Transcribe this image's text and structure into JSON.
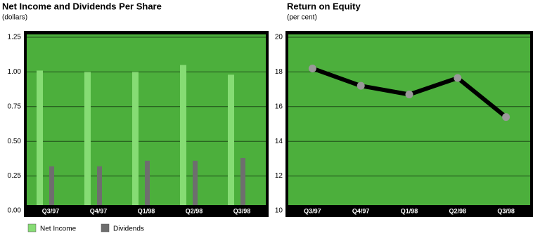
{
  "chart_data": [
    {
      "type": "bar",
      "title": "Net Income and Dividends Per Share",
      "subtitle": "(dollars)",
      "categories": [
        "Q3/97",
        "Q4/97",
        "Q1/98",
        "Q2/98",
        "Q3/98"
      ],
      "series": [
        {
          "name": "Net Income",
          "color": "#86dc74",
          "values": [
            1.01,
            1.0,
            1.0,
            1.05,
            0.98
          ]
        },
        {
          "name": "Dividends",
          "color": "#6e6e6e",
          "values": [
            0.32,
            0.32,
            0.36,
            0.36,
            0.38
          ]
        }
      ],
      "ylim": [
        0,
        1.25
      ],
      "yticks": [
        {
          "value": 0,
          "label": "0.00"
        },
        0.25,
        {
          "value": 0.5,
          "label": "0.50"
        },
        0.75,
        {
          "value": 1,
          "label": "1.00"
        },
        1.25
      ],
      "grid": true,
      "background": "#4caf3c"
    },
    {
      "type": "line",
      "title": "Return on Equity",
      "subtitle": "(per cent)",
      "categories": [
        "Q3/97",
        "Q4/97",
        "Q1/98",
        "Q2/98",
        "Q3/98"
      ],
      "values": [
        18.2,
        17.2,
        16.7,
        17.65,
        15.4
      ],
      "color": "#000000",
      "marker_color": "#999999",
      "ylim": [
        10,
        20
      ],
      "yticks": [
        10,
        12,
        14,
        16,
        18,
        20
      ],
      "grid": true,
      "background": "#4caf3c"
    }
  ]
}
